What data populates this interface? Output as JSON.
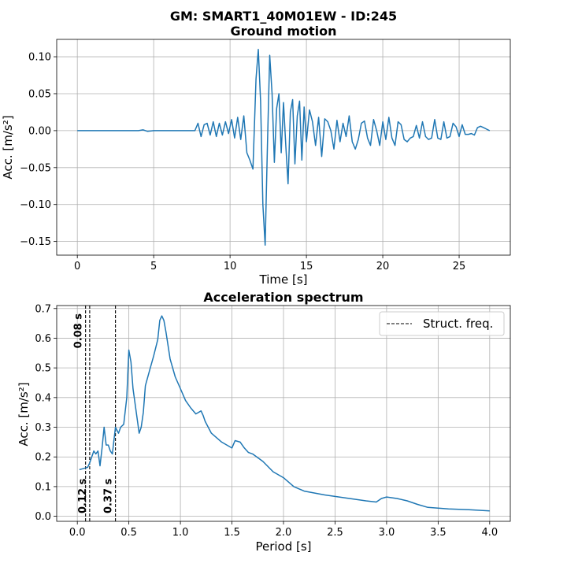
{
  "figure": {
    "suptitle": "GM: SMART1_40M01EW - ID:245"
  },
  "chart_data": [
    {
      "type": "line",
      "title": "Ground motion",
      "xlabel": "Time [s]",
      "ylabel": "Acc. [m/s²]",
      "xlim": [
        -1.35,
        28.35
      ],
      "ylim": [
        -0.1685,
        0.1235
      ],
      "xticks": [
        0,
        5,
        10,
        15,
        20,
        25
      ],
      "yticks": [
        -0.15,
        -0.1,
        -0.05,
        0.0,
        0.05,
        0.1
      ],
      "ytick_labels": [
        "−0.15",
        "−0.10",
        "−0.05",
        "0.00",
        "0.05",
        "0.10"
      ],
      "grid": true,
      "series": [
        {
          "color": "#1f77b4",
          "x": [
            0,
            1,
            2,
            3,
            4,
            4.3,
            4.6,
            5,
            6,
            7,
            7.7,
            7.9,
            8.1,
            8.3,
            8.5,
            8.7,
            8.9,
            9.1,
            9.3,
            9.5,
            9.7,
            9.9,
            10.1,
            10.3,
            10.5,
            10.7,
            10.9,
            11.1,
            11.3,
            11.5,
            11.7,
            11.85,
            12.0,
            12.15,
            12.3,
            12.45,
            12.6,
            12.75,
            12.9,
            13.05,
            13.2,
            13.35,
            13.5,
            13.65,
            13.8,
            13.95,
            14.1,
            14.25,
            14.4,
            14.55,
            14.7,
            14.85,
            15.0,
            15.2,
            15.4,
            15.6,
            15.8,
            16.0,
            16.2,
            16.4,
            16.6,
            16.8,
            17.0,
            17.2,
            17.4,
            17.6,
            17.8,
            18.0,
            18.2,
            18.4,
            18.6,
            18.8,
            19.0,
            19.2,
            19.4,
            19.6,
            19.8,
            20.0,
            20.2,
            20.4,
            20.6,
            20.8,
            21.0,
            21.2,
            21.4,
            21.6,
            21.8,
            22.0,
            22.2,
            22.4,
            22.6,
            22.8,
            23.0,
            23.2,
            23.4,
            23.6,
            23.8,
            24.0,
            24.2,
            24.4,
            24.6,
            24.8,
            25.0,
            25.2,
            25.4,
            25.6,
            25.8,
            26.0,
            26.2,
            26.4,
            26.6,
            26.8,
            27.0
          ],
          "y": [
            0.0,
            0.0,
            0.0,
            0.0,
            0.0,
            0.001,
            -0.001,
            0.0,
            0.0,
            0.0,
            0.0,
            0.01,
            -0.008,
            0.008,
            0.01,
            -0.006,
            0.012,
            -0.008,
            0.01,
            -0.006,
            0.012,
            -0.004,
            0.015,
            -0.01,
            0.018,
            -0.012,
            0.02,
            -0.03,
            -0.04,
            -0.052,
            0.07,
            0.11,
            0.04,
            -0.1,
            -0.155,
            -0.02,
            0.102,
            0.05,
            -0.043,
            0.03,
            0.05,
            -0.03,
            0.038,
            -0.02,
            -0.072,
            0.025,
            0.042,
            -0.045,
            0.02,
            0.04,
            -0.04,
            0.032,
            -0.015,
            0.028,
            0.012,
            -0.02,
            0.018,
            -0.035,
            0.016,
            0.012,
            0.0,
            -0.025,
            0.014,
            -0.015,
            0.01,
            -0.008,
            0.02,
            -0.015,
            -0.025,
            -0.012,
            0.01,
            0.013,
            -0.01,
            -0.02,
            0.015,
            0.0,
            -0.02,
            0.012,
            -0.012,
            0.018,
            -0.01,
            -0.02,
            0.012,
            0.008,
            -0.012,
            -0.015,
            -0.01,
            -0.008,
            0.007,
            -0.01,
            0.012,
            -0.008,
            -0.012,
            -0.01,
            0.015,
            -0.01,
            -0.012,
            0.012,
            -0.01,
            -0.008,
            0.01,
            0.005,
            -0.008,
            0.008,
            -0.005,
            -0.005,
            -0.004,
            -0.006,
            0.004,
            0.006,
            0.004,
            0.002,
            0.0
          ]
        }
      ]
    },
    {
      "type": "line",
      "title": "Acceleration spectrum",
      "xlabel": "Period [s]",
      "ylabel": "Acc. [m/s²]",
      "xlim": [
        -0.2,
        4.2
      ],
      "ylim": [
        -0.017,
        0.71
      ],
      "xticks": [
        0,
        0.5,
        1.0,
        1.5,
        2.0,
        2.5,
        3.0,
        3.5,
        4.0
      ],
      "xtick_labels": [
        "0.0",
        "0.5",
        "1.0",
        "1.5",
        "2.0",
        "2.5",
        "3.0",
        "3.5",
        "4.0"
      ],
      "yticks": [
        0,
        0.1,
        0.2,
        0.3,
        0.4,
        0.5,
        0.6,
        0.7
      ],
      "ytick_labels": [
        "0.0",
        "0.1",
        "0.2",
        "0.3",
        "0.4",
        "0.5",
        "0.6",
        "0.7"
      ],
      "grid": true,
      "legend": {
        "position": "top-right",
        "entry": "Struct. freq."
      },
      "vlines": [
        {
          "x": 0.08,
          "label": "0.08 s",
          "label_pos": "top"
        },
        {
          "x": 0.12,
          "label": "0.12 s",
          "label_pos": "bottom"
        },
        {
          "x": 0.37,
          "label": "0.37 s",
          "label_pos": "bottom"
        }
      ],
      "series": [
        {
          "color": "#1f77b4",
          "x": [
            0.02,
            0.05,
            0.08,
            0.1,
            0.12,
            0.14,
            0.16,
            0.18,
            0.2,
            0.22,
            0.24,
            0.26,
            0.28,
            0.3,
            0.32,
            0.34,
            0.37,
            0.4,
            0.42,
            0.45,
            0.48,
            0.5,
            0.52,
            0.54,
            0.56,
            0.58,
            0.6,
            0.62,
            0.64,
            0.66,
            0.7,
            0.74,
            0.78,
            0.8,
            0.82,
            0.84,
            0.86,
            0.9,
            0.95,
            1.0,
            1.05,
            1.1,
            1.15,
            1.2,
            1.22,
            1.24,
            1.27,
            1.3,
            1.4,
            1.5,
            1.53,
            1.58,
            1.62,
            1.66,
            1.7,
            1.8,
            1.9,
            2.0,
            2.1,
            2.2,
            2.4,
            2.6,
            2.8,
            2.9,
            2.95,
            3.0,
            3.1,
            3.2,
            3.3,
            3.4,
            3.6,
            3.8,
            4.0
          ],
          "y": [
            0.157,
            0.16,
            0.163,
            0.165,
            0.18,
            0.2,
            0.22,
            0.21,
            0.22,
            0.17,
            0.23,
            0.3,
            0.24,
            0.24,
            0.22,
            0.21,
            0.3,
            0.28,
            0.3,
            0.31,
            0.4,
            0.56,
            0.52,
            0.43,
            0.38,
            0.33,
            0.28,
            0.3,
            0.35,
            0.44,
            0.49,
            0.54,
            0.595,
            0.66,
            0.675,
            0.66,
            0.62,
            0.53,
            0.47,
            0.43,
            0.39,
            0.365,
            0.345,
            0.355,
            0.34,
            0.32,
            0.3,
            0.28,
            0.25,
            0.23,
            0.255,
            0.25,
            0.23,
            0.215,
            0.21,
            0.185,
            0.15,
            0.13,
            0.1,
            0.085,
            0.072,
            0.062,
            0.052,
            0.048,
            0.06,
            0.065,
            0.06,
            0.052,
            0.04,
            0.03,
            0.025,
            0.022,
            0.018
          ]
        }
      ]
    }
  ]
}
